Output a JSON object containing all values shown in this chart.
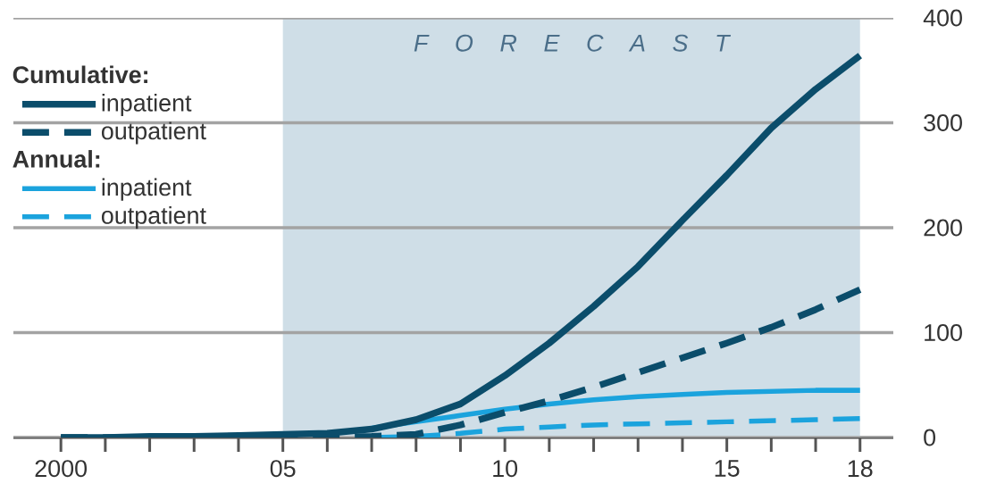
{
  "chart_data": {
    "type": "line",
    "x": [
      2000,
      2001,
      2002,
      2003,
      2004,
      2005,
      2006,
      2007,
      2008,
      2009,
      2010,
      2011,
      2012,
      2013,
      2014,
      2015,
      2016,
      2017,
      2018
    ],
    "series": [
      {
        "name": "inpatient",
        "color": "#0b4d6b",
        "line_style": "solid",
        "values": [
          0,
          0,
          1,
          1,
          2,
          3,
          4,
          8,
          17,
          32,
          59,
          90,
          125,
          163,
          207,
          250,
          295,
          332,
          364
        ]
      },
      {
        "name": "outpatient",
        "color": "#0b4d6b",
        "line_style": "dashed",
        "values": [
          0,
          0,
          0,
          0,
          0,
          0,
          0,
          1,
          3,
          12,
          24,
          35,
          48,
          62,
          76,
          90,
          105,
          122,
          141
        ]
      },
      {
        "name": "inpatient",
        "color": "#1ba3dd",
        "line_style": "solid",
        "values": [
          null,
          null,
          null,
          null,
          null,
          null,
          null,
          9,
          15,
          21,
          27,
          32,
          36,
          39,
          41,
          43,
          44,
          45,
          45
        ]
      },
      {
        "name": "outpatient",
        "color": "#1ba3dd",
        "line_style": "dashed",
        "values": [
          null,
          null,
          null,
          null,
          null,
          null,
          null,
          0,
          1,
          4,
          8,
          10,
          12,
          13,
          14,
          15,
          16,
          17,
          18
        ]
      }
    ],
    "annotations": [
      "Cumulative:",
      "Annual:"
    ],
    "bands": [
      {
        "axis": "x",
        "from": 2005,
        "to": 2018,
        "label": "F O R E C A S T",
        "color": "#cfdee7"
      }
    ],
    "xlim": [
      1998.93,
      2018.75
    ],
    "ylim": [
      0,
      400
    ],
    "xticks": [
      {
        "value": 2000,
        "label": "2000"
      },
      {
        "value": 2001,
        "label": null
      },
      {
        "value": 2002,
        "label": null
      },
      {
        "value": 2003,
        "label": null
      },
      {
        "value": 2004,
        "label": null
      },
      {
        "value": 2005,
        "label": "05"
      },
      {
        "value": 2006,
        "label": null
      },
      {
        "value": 2007,
        "label": null
      },
      {
        "value": 2008,
        "label": null
      },
      {
        "value": 2009,
        "label": null
      },
      {
        "value": 2010,
        "label": "10"
      },
      {
        "value": 2011,
        "label": null
      },
      {
        "value": 2012,
        "label": null
      },
      {
        "value": 2013,
        "label": null
      },
      {
        "value": 2014,
        "label": null
      },
      {
        "value": 2015,
        "label": "15"
      },
      {
        "value": 2016,
        "label": null
      },
      {
        "value": 2017,
        "label": null
      },
      {
        "value": 2018,
        "label": "18"
      }
    ],
    "yticks": [
      0,
      100,
      200,
      300,
      400
    ],
    "grid": "y",
    "legend": "top left"
  }
}
